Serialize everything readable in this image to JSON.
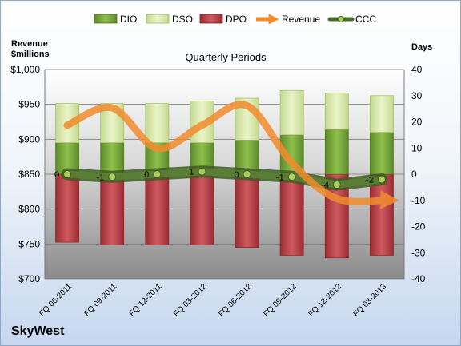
{
  "chart_data": {
    "type": "bar",
    "title": "Quarterly Periods",
    "company": "SkyWest",
    "left_axis": {
      "label_line1": "Revenue",
      "label_line2": "$millions",
      "min": 700,
      "max": 1000,
      "step": 50,
      "ticks": [
        "$700",
        "$750",
        "$800",
        "$850",
        "$900",
        "$950",
        "$1,000"
      ]
    },
    "right_axis": {
      "label": "Days",
      "min": -40,
      "max": 40,
      "step": 10,
      "ticks": [
        "-40",
        "-30",
        "-20",
        "-10",
        "0",
        "10",
        "20",
        "30",
        "40"
      ]
    },
    "categories": [
      "FQ 06-2011",
      "FQ 09-2011",
      "FQ 12-2011",
      "FQ 03-2012",
      "FQ 06-2012",
      "FQ 09-2012",
      "FQ 12-2012",
      "FQ 03-2013"
    ],
    "series": [
      {
        "name": "DIO",
        "type": "stacked-bar",
        "color": "#77a23a",
        "values": [
          12,
          12,
          12,
          12,
          13,
          15,
          17,
          16
        ]
      },
      {
        "name": "DSO",
        "type": "stacked-bar",
        "color": "#d7e6a9",
        "values": [
          15,
          15,
          15,
          16,
          16,
          17,
          14,
          14
        ]
      },
      {
        "name": "DPO",
        "type": "negative-bar",
        "color": "#b13b43",
        "values": [
          -26,
          -27,
          -27,
          -27,
          -28,
          -31,
          -32,
          -31
        ]
      },
      {
        "name": "Revenue",
        "type": "line",
        "axis": "left",
        "color": "#f28c2e",
        "values": [
          920,
          945,
          887,
          920,
          948,
          866,
          815,
          813
        ]
      },
      {
        "name": "CCC",
        "type": "line",
        "axis": "right",
        "color": "#4a6b2a",
        "values": [
          0,
          -1,
          0,
          1,
          0,
          -1,
          -4,
          -2
        ],
        "data_labels": [
          "0",
          "-1",
          "0",
          "1",
          "0",
          "-1",
          "-4",
          "-2"
        ]
      }
    ],
    "grid": true,
    "legend": "top"
  }
}
